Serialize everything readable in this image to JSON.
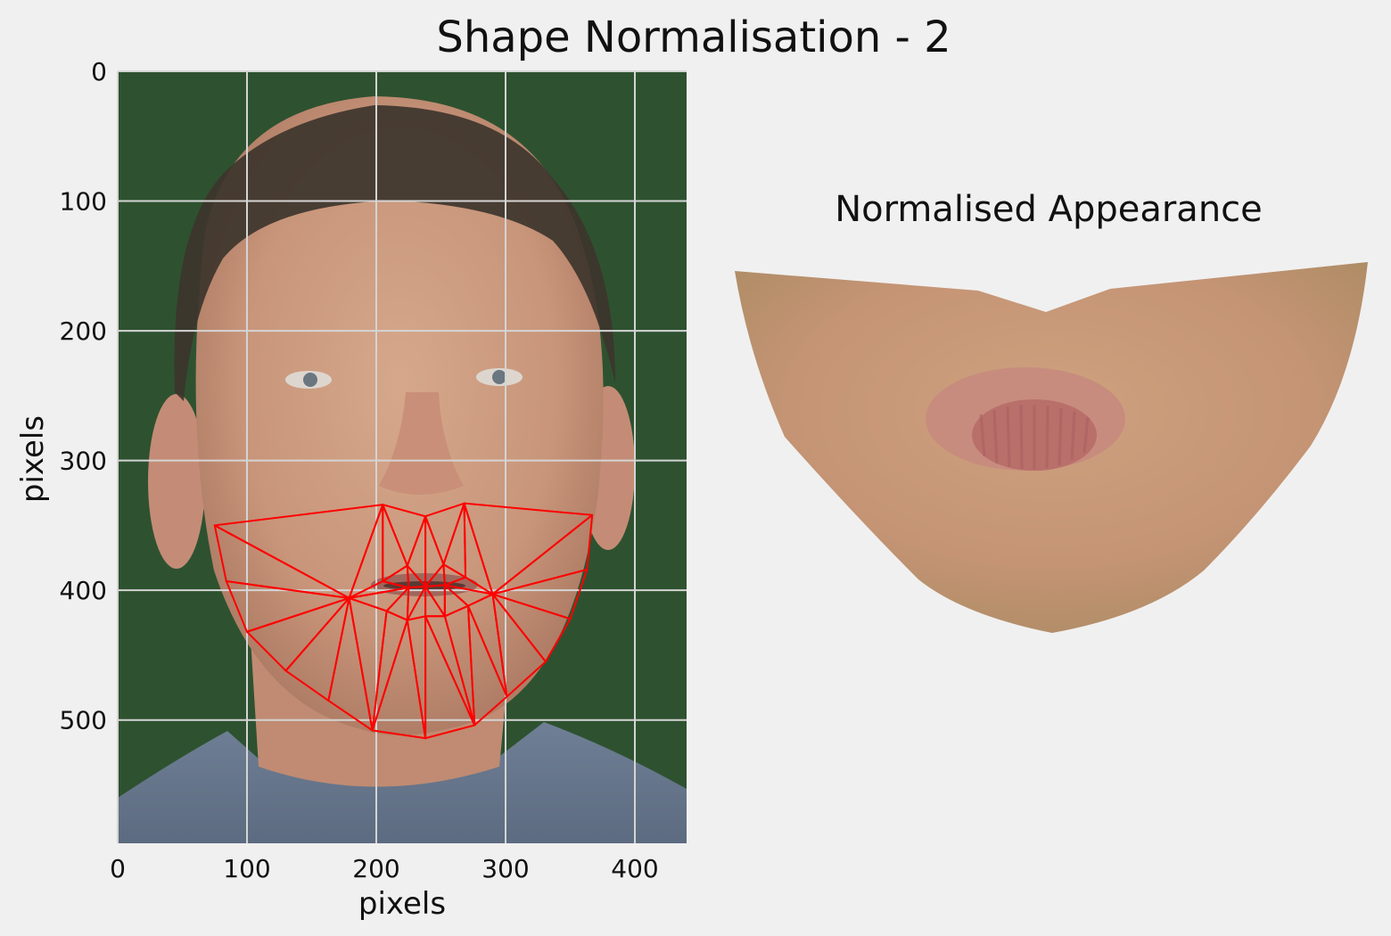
{
  "figure": {
    "title": "Shape Normalisation - 2"
  },
  "chart_data": [
    {
      "type": "scatter",
      "subtype": "image-with-triangle-mesh",
      "title": "",
      "xlabel": "pixels",
      "ylabel": "pixels",
      "xlim": [
        0,
        440
      ],
      "ylim": [
        595,
        0
      ],
      "y_inverted": true,
      "grid": true,
      "xticks": [
        0,
        100,
        200,
        300,
        400
      ],
      "yticks": [
        0,
        100,
        200,
        300,
        400,
        500
      ],
      "mesh_color": "#ff0000",
      "background_color": "#2e5230",
      "landmarks": [
        {
          "x": 75,
          "y": 350
        },
        {
          "x": 84,
          "y": 393
        },
        {
          "x": 100,
          "y": 432
        },
        {
          "x": 130,
          "y": 462
        },
        {
          "x": 163,
          "y": 485
        },
        {
          "x": 197,
          "y": 508
        },
        {
          "x": 238,
          "y": 514
        },
        {
          "x": 276,
          "y": 504
        },
        {
          "x": 301,
          "y": 482
        },
        {
          "x": 331,
          "y": 455
        },
        {
          "x": 350,
          "y": 422
        },
        {
          "x": 363,
          "y": 384
        },
        {
          "x": 367,
          "y": 342
        },
        {
          "x": 179,
          "y": 406
        },
        {
          "x": 205,
          "y": 334
        },
        {
          "x": 238,
          "y": 343
        },
        {
          "x": 268,
          "y": 333
        },
        {
          "x": 290,
          "y": 403
        },
        {
          "x": 224,
          "y": 381
        },
        {
          "x": 252,
          "y": 380
        },
        {
          "x": 205,
          "y": 393
        },
        {
          "x": 269,
          "y": 390
        },
        {
          "x": 225,
          "y": 398
        },
        {
          "x": 253,
          "y": 396
        },
        {
          "x": 208,
          "y": 416
        },
        {
          "x": 271,
          "y": 412
        },
        {
          "x": 224,
          "y": 423
        },
        {
          "x": 253,
          "y": 420
        },
        {
          "x": 238,
          "y": 397
        },
        {
          "x": 238,
          "y": 420
        }
      ],
      "triangles": [
        [
          0,
          1,
          13
        ],
        [
          1,
          2,
          13
        ],
        [
          2,
          3,
          13
        ],
        [
          3,
          4,
          13
        ],
        [
          4,
          5,
          13
        ],
        [
          5,
          24,
          13
        ],
        [
          5,
          26,
          24
        ],
        [
          5,
          6,
          26
        ],
        [
          6,
          29,
          26
        ],
        [
          6,
          7,
          29
        ],
        [
          7,
          27,
          29
        ],
        [
          7,
          25,
          27
        ],
        [
          7,
          8,
          25
        ],
        [
          8,
          17,
          25
        ],
        [
          8,
          9,
          17
        ],
        [
          9,
          10,
          17
        ],
        [
          10,
          11,
          17
        ],
        [
          11,
          12,
          17
        ],
        [
          0,
          13,
          14
        ],
        [
          13,
          20,
          14
        ],
        [
          14,
          20,
          18
        ],
        [
          14,
          18,
          15
        ],
        [
          15,
          18,
          28
        ],
        [
          15,
          28,
          19
        ],
        [
          15,
          19,
          16
        ],
        [
          16,
          19,
          21
        ],
        [
          16,
          21,
          17
        ],
        [
          16,
          17,
          12
        ],
        [
          13,
          20,
          22
        ],
        [
          13,
          22,
          24
        ],
        [
          20,
          18,
          22
        ],
        [
          18,
          28,
          22
        ],
        [
          28,
          19,
          23
        ],
        [
          19,
          21,
          23
        ],
        [
          21,
          17,
          23
        ],
        [
          17,
          25,
          23
        ],
        [
          22,
          24,
          26
        ],
        [
          22,
          26,
          28
        ],
        [
          28,
          26,
          29
        ],
        [
          28,
          29,
          27
        ],
        [
          28,
          27,
          23
        ],
        [
          23,
          27,
          25
        ]
      ]
    }
  ],
  "right_panel": {
    "title": "Normalised Appearance"
  }
}
